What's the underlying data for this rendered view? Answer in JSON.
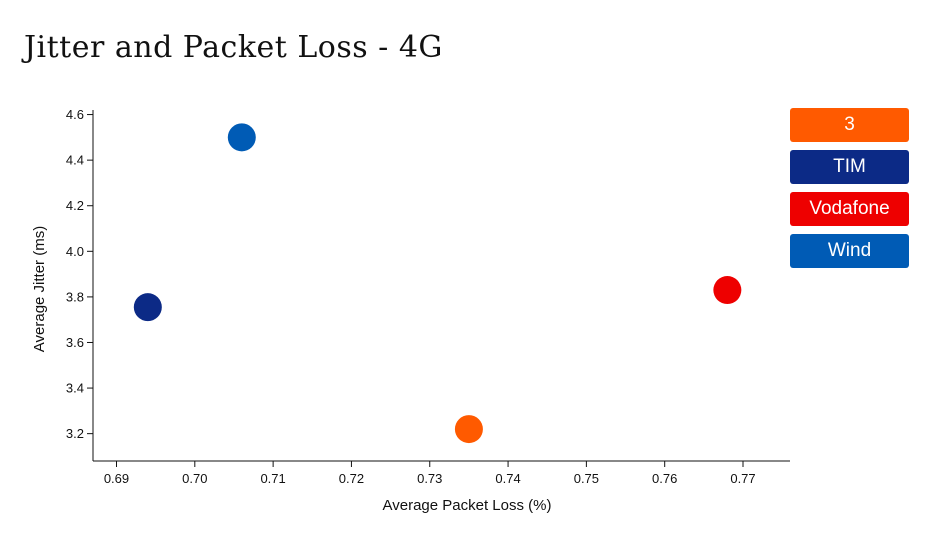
{
  "chart_data": {
    "type": "scatter",
    "title": "Jitter and Packet Loss - 4G",
    "xlabel": "Average Packet Loss (%)",
    "ylabel": "Average Jitter (ms)",
    "xlim": [
      0.687,
      0.776
    ],
    "ylim": [
      3.08,
      4.62
    ],
    "xticks": [
      0.69,
      0.7,
      0.71,
      0.72,
      0.73,
      0.74,
      0.75,
      0.76,
      0.77
    ],
    "xtick_labels": [
      "0.69",
      "0.70",
      "0.71",
      "0.72",
      "0.73",
      "0.74",
      "0.75",
      "0.76",
      "0.77"
    ],
    "yticks": [
      3.2,
      3.4,
      3.6,
      3.8,
      4.0,
      4.2,
      4.4,
      4.6
    ],
    "ytick_labels": [
      "3.2",
      "3.4",
      "3.6",
      "3.8",
      "4.0",
      "4.2",
      "4.4",
      "4.6"
    ],
    "grid": false,
    "legend_position": "right",
    "series": [
      {
        "name": "3",
        "color": "#ff5a00",
        "x": 0.735,
        "y": 3.22
      },
      {
        "name": "TIM",
        "color": "#0c2a86",
        "x": 0.694,
        "y": 3.755
      },
      {
        "name": "Vodafone",
        "color": "#ee0000",
        "x": 0.768,
        "y": 3.83
      },
      {
        "name": "Wind",
        "color": "#005bb5",
        "x": 0.706,
        "y": 4.5
      }
    ]
  }
}
